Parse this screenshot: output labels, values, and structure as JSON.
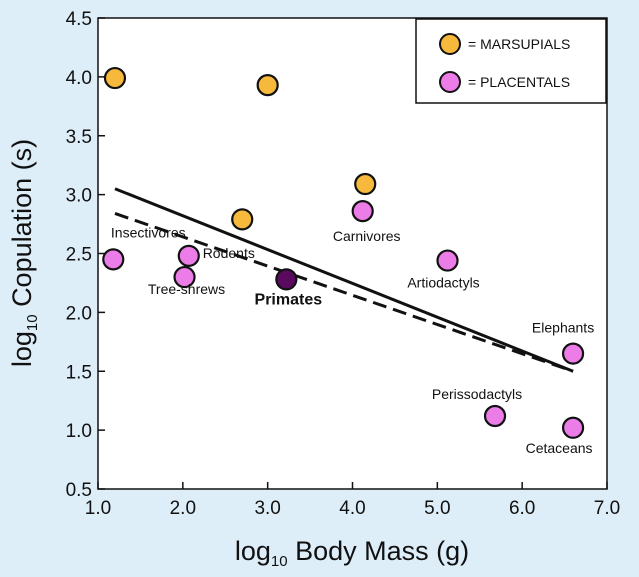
{
  "chart_data": {
    "type": "scatter",
    "xlabel_prefix": "log",
    "xlabel_sub": "10",
    "xlabel_rest": " Body Mass (g)",
    "ylabel_prefix": "log",
    "ylabel_sub": "10",
    "ylabel_rest": " Copulation (s)",
    "xlim": [
      1.0,
      7.0
    ],
    "ylim": [
      0.5,
      4.5
    ],
    "xticks": [
      "1.0",
      "2.0",
      "3.0",
      "4.0",
      "5.0",
      "6.0",
      "7.0"
    ],
    "yticks": [
      "0.5",
      "1.0",
      "1.5",
      "2.0",
      "2.5",
      "3.0",
      "3.5",
      "4.0",
      "4.5"
    ],
    "colors": {
      "marsupial": "#f6b93b",
      "placental": "#ec7ce8",
      "primate": "#5a0a5e",
      "highlight_text": "#c80000",
      "background": "#ddeef9"
    },
    "legend": {
      "position": "top-right",
      "entries": [
        {
          "label": "= MARSUPIALS",
          "group": "marsupial"
        },
        {
          "label": "= PLACENTALS",
          "group": "placental"
        }
      ]
    },
    "series": [
      {
        "name": "MARSUPIALS",
        "group": "marsupial",
        "points": [
          {
            "x": 1.2,
            "y": 3.99
          },
          {
            "x": 3.0,
            "y": 3.93
          },
          {
            "x": 2.7,
            "y": 2.79
          },
          {
            "x": 4.15,
            "y": 3.09
          }
        ]
      },
      {
        "name": "PLACENTALS",
        "group": "placental",
        "points": [
          {
            "x": 1.18,
            "y": 2.45,
            "label": "Insectivores"
          },
          {
            "x": 2.02,
            "y": 2.3,
            "label": "Tree-shrews"
          },
          {
            "x": 2.07,
            "y": 2.48,
            "label": "Rodents"
          },
          {
            "x": 4.12,
            "y": 2.86,
            "label": "Carnivores"
          },
          {
            "x": 5.12,
            "y": 2.44,
            "label": "Artiodactyls"
          },
          {
            "x": 6.6,
            "y": 1.65,
            "label": "Elephants"
          },
          {
            "x": 5.68,
            "y": 1.12,
            "label": "Perissodactyls"
          },
          {
            "x": 6.6,
            "y": 1.02,
            "label": "Cetaceans"
          }
        ]
      },
      {
        "name": "Primates",
        "group": "primate",
        "points": [
          {
            "x": 3.22,
            "y": 2.28,
            "label": "Primates",
            "highlight": true
          }
        ]
      }
    ],
    "trend_lines": [
      {
        "style": "solid",
        "from": [
          1.2,
          3.05
        ],
        "to": [
          6.6,
          1.5
        ]
      },
      {
        "style": "dashed",
        "from": [
          1.2,
          2.84
        ],
        "to": [
          6.6,
          1.5
        ]
      }
    ]
  }
}
